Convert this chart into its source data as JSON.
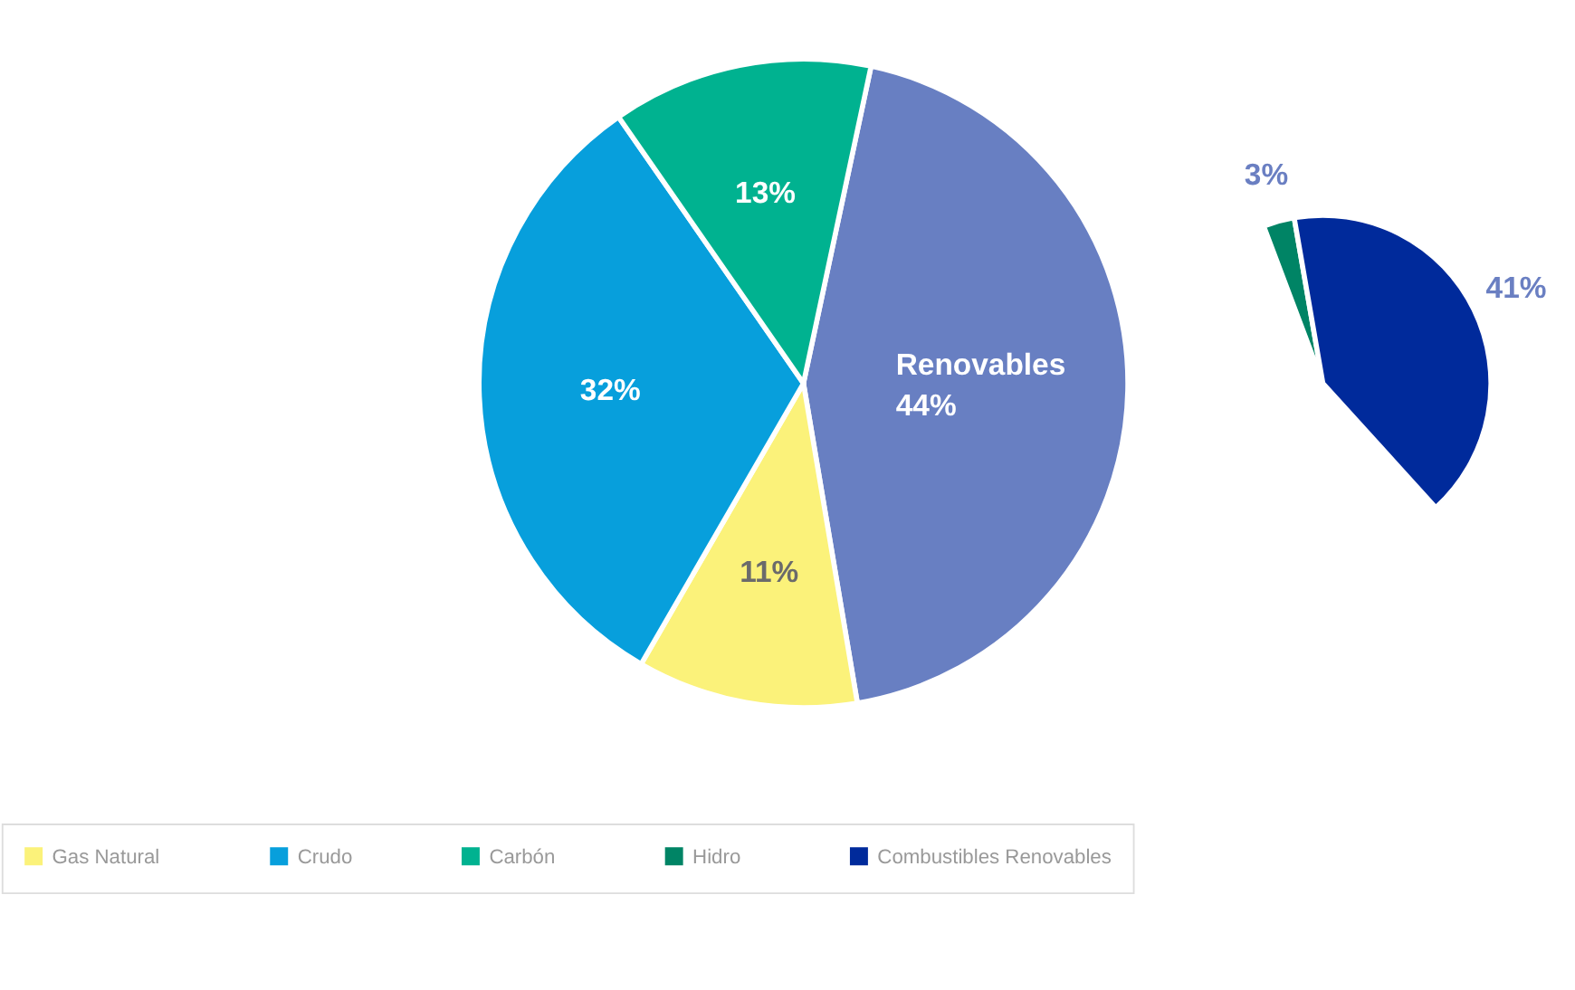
{
  "chart_data": [
    {
      "type": "pie",
      "categories": [
        "Renovables",
        "Gas Natural",
        "Crudo",
        "Carbón"
      ],
      "values": [
        44,
        11,
        32,
        13
      ],
      "colors": [
        "#687fc2",
        "#fbf27a",
        "#079fdc",
        "#00b290"
      ],
      "value_labels": [
        "44%",
        "11%",
        "32%",
        "13%"
      ],
      "legend": "bottom"
    },
    {
      "type": "pie",
      "categories": [
        "Hidro",
        "Combustibles Renovables"
      ],
      "values": [
        3,
        41
      ],
      "colors": [
        "#008465",
        "#002a9b"
      ],
      "value_labels": [
        "3%",
        "41%"
      ],
      "legend": "bottom"
    }
  ]
}
